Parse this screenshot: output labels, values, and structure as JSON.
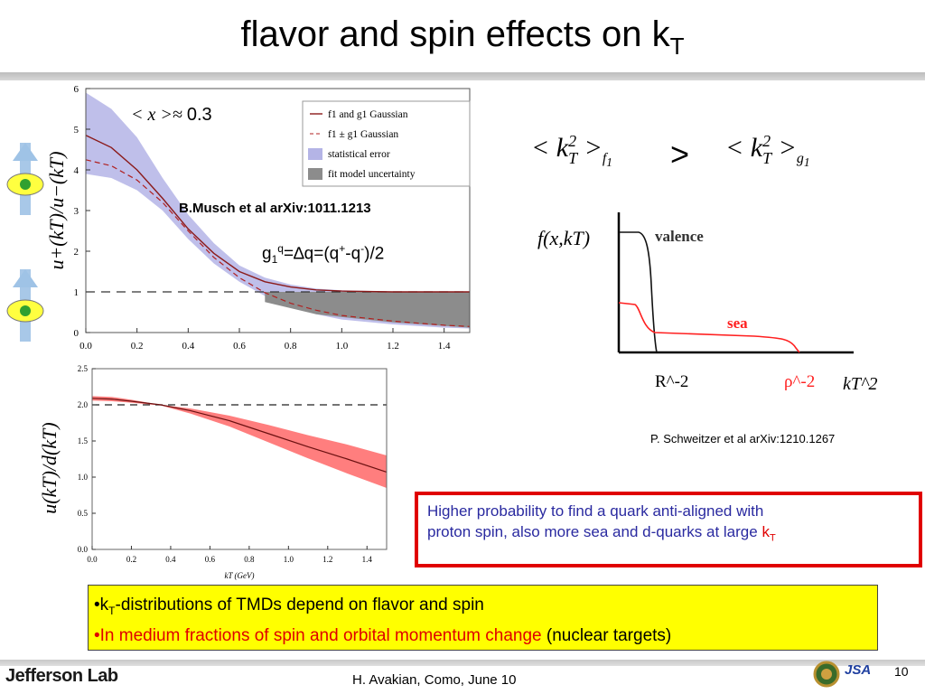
{
  "slide": {
    "title_main": "flavor and spin effects on k",
    "title_sub": "T",
    "footer": "H. Avakian, Como,  June 10",
    "page_number": "10",
    "logo_text": "Jefferson Lab",
    "jsa_text": "JSA"
  },
  "annotations": {
    "x_avg": "0.3",
    "musch_ref": "B.Musch et al arXiv:1011.1213",
    "schweitzer_ref": "P. Schweitzer et al arXiv:1210.1267",
    "g1_formula": {
      "g": "g",
      "one": "1",
      "q": "q",
      "mid": "=∆q=(q",
      "plus": "+",
      "dash": "-q",
      "minus": "-",
      "end": ")/2"
    },
    "greater": ">"
  },
  "red_box": {
    "line1": "Higher probability to find a quark anti-aligned with",
    "line2": "proton spin, also more sea and d-quarks  at large ",
    "k": "k",
    "sub": "T"
  },
  "yellow_box": {
    "b1_pre": "•k",
    "b1_sub": "T",
    "b1_post": "-distributions of TMDs  depend on flavor and spin",
    "b2_red": "•In medium fractions of spin and orbital momentum change",
    "b2_black": " (nuclear targets)"
  },
  "chart_data": [
    {
      "type": "line",
      "ylabel": "u+(kT)/u−(kT)",
      "xlim": [
        0,
        1.5
      ],
      "ylim": [
        0,
        6
      ],
      "xticks": [
        0.0,
        0.2,
        0.4,
        0.6,
        0.8,
        1.0,
        1.2,
        1.4
      ],
      "yticks": [
        0,
        1,
        2,
        3,
        4,
        5,
        6
      ],
      "legend": [
        "f1 and g1 Gaussian",
        "f1 ± g1 Gaussian",
        "statistical error",
        "fit model uncertainty"
      ],
      "legend_position": "top-right",
      "x": [
        0,
        0.1,
        0.2,
        0.3,
        0.4,
        0.5,
        0.6,
        0.7,
        0.8,
        0.9,
        1.0,
        1.2,
        1.4,
        1.5
      ],
      "series": [
        {
          "name": "f1 and g1 Gaussian",
          "values": [
            4.85,
            4.55,
            4.0,
            3.3,
            2.55,
            1.95,
            1.5,
            1.25,
            1.12,
            1.05,
            1.02,
            1.0,
            1.0,
            1.0
          ]
        },
        {
          "name": "f1 ± g1 Gaussian",
          "values": [
            4.25,
            4.1,
            3.75,
            3.2,
            2.5,
            1.85,
            1.35,
            0.98,
            0.72,
            0.55,
            0.42,
            0.28,
            0.18,
            0.15
          ]
        },
        {
          "name": "statistical error",
          "upper": [
            5.9,
            5.5,
            4.8,
            3.8,
            2.9,
            2.2,
            1.65,
            1.35,
            1.18,
            1.08,
            1.04,
            1.01,
            1.0,
            1.0
          ],
          "lower": [
            3.9,
            3.8,
            3.5,
            3.0,
            2.3,
            1.7,
            1.25,
            0.9,
            0.65,
            0.45,
            0.32,
            0.2,
            0.12,
            0.1
          ]
        },
        {
          "name": "fit model uncertainty",
          "upper": [
            1.0,
            1.0,
            1.0,
            1.0
          ],
          "lower": [
            0.75,
            0.45,
            0.25,
            0.12
          ],
          "x": [
            0.7,
            0.9,
            1.2,
            1.5
          ]
        }
      ],
      "reference_line": 1
    },
    {
      "type": "line",
      "ylabel": "u(kT)/d(kT)",
      "xlabel": "kT (GeV)",
      "xlim": [
        0,
        1.5
      ],
      "ylim": [
        0,
        2.5
      ],
      "xticks": [
        0.0,
        0.2,
        0.4,
        0.6,
        0.8,
        1.0,
        1.2,
        1.4
      ],
      "yticks": [
        0.0,
        0.5,
        1.0,
        1.5,
        2.0,
        2.5
      ],
      "x": [
        0.0,
        0.1,
        0.2,
        0.35,
        0.5,
        0.7,
        0.9,
        1.1,
        1.3,
        1.5
      ],
      "series": [
        {
          "name": "central",
          "values": [
            2.09,
            2.08,
            2.05,
            2.0,
            1.92,
            1.78,
            1.6,
            1.42,
            1.25,
            1.07
          ]
        },
        {
          "name": "band",
          "upper": [
            2.12,
            2.11,
            2.07,
            2.0,
            1.95,
            1.85,
            1.72,
            1.58,
            1.45,
            1.3
          ],
          "lower": [
            2.06,
            2.05,
            2.03,
            1.99,
            1.88,
            1.7,
            1.48,
            1.26,
            1.05,
            0.85
          ]
        }
      ],
      "reference_line": 2
    },
    {
      "type": "line",
      "ylabel": "f(x,kT)",
      "xlabel": "kT^2",
      "annotations": [
        "valence",
        "sea",
        "R^-2",
        "ρ^-2"
      ]
    }
  ]
}
